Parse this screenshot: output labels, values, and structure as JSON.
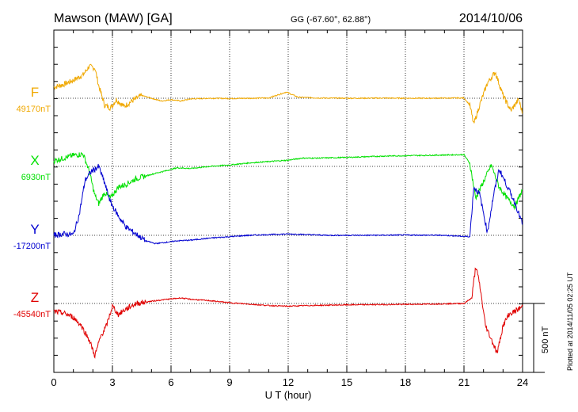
{
  "header": {
    "station": "Mawson (MAW)  [GA]",
    "coords": "GG (-67.60°,  62.88°)",
    "date": "2014/10/06"
  },
  "footer_note": "Plotted at 2014/11/05 02:25 UT",
  "chart_data": {
    "type": "line",
    "xlabel": "U T (hour)",
    "ylabel": "",
    "xlim": [
      0,
      24
    ],
    "xticks": [
      0,
      3,
      6,
      9,
      12,
      15,
      18,
      21,
      24
    ],
    "grid": true,
    "scale_bar": {
      "value_nT": 500,
      "label": "500 nT"
    },
    "colors": {
      "F": "#f0a800",
      "X": "#00e000",
      "Y": "#0000d0",
      "Z": "#e00000"
    },
    "series": [
      {
        "name": "F",
        "baseline_label": "49170nT",
        "baseline_nT": 49170,
        "x": [
          0,
          0.5,
          1.0,
          1.5,
          1.8,
          2.1,
          2.3,
          2.6,
          2.9,
          3.2,
          3.6,
          4.0,
          4.5,
          5.0,
          5.5,
          6.0,
          6.5,
          7.0,
          8.0,
          9.0,
          10.0,
          11.0,
          11.9,
          12.5,
          13.5,
          15.0,
          17.0,
          19.0,
          21.0,
          21.3,
          21.5,
          21.8,
          22.2,
          22.6,
          23.0,
          23.4,
          23.8,
          24.0
        ],
        "values": [
          49250,
          49270,
          49300,
          49340,
          49400,
          49390,
          49260,
          49120,
          49100,
          49160,
          49110,
          49150,
          49190,
          49170,
          49150,
          49160,
          49150,
          49165,
          49170,
          49168,
          49170,
          49172,
          49215,
          49178,
          49172,
          49170,
          49171,
          49170,
          49172,
          49120,
          48980,
          49120,
          49280,
          49360,
          49190,
          49080,
          49160,
          49060
        ]
      },
      {
        "name": "X",
        "baseline_label": "6930nT",
        "baseline_nT": 6930,
        "x": [
          0,
          0.5,
          1.0,
          1.5,
          1.8,
          2.1,
          2.3,
          2.6,
          2.9,
          3.3,
          3.7,
          4.2,
          4.7,
          5.2,
          5.8,
          6.3,
          7.0,
          8.0,
          9.0,
          10.0,
          11.0,
          12.0,
          12.7,
          13.5,
          15.0,
          17.0,
          19.0,
          21.0,
          21.3,
          21.6,
          22.0,
          22.4,
          22.8,
          23.2,
          23.6,
          24.0
        ],
        "values": [
          6970,
          6990,
          7010,
          7020,
          6900,
          6720,
          6660,
          6740,
          6700,
          6780,
          6800,
          6840,
          6860,
          6880,
          6900,
          6920,
          6915,
          6930,
          6940,
          6955,
          6965,
          6975,
          6990,
          6990,
          6995,
          7005,
          7010,
          7015,
          6950,
          6700,
          6820,
          6940,
          6780,
          6700,
          6640,
          6760
        ]
      },
      {
        "name": "Y",
        "baseline_label": "-17200nT",
        "baseline_nT": -17200,
        "x": [
          0,
          0.5,
          1.0,
          1.3,
          1.6,
          1.9,
          2.3,
          2.6,
          2.9,
          3.3,
          3.7,
          4.2,
          4.7,
          5.2,
          5.8,
          6.3,
          7.0,
          8.0,
          9.0,
          10.0,
          11.0,
          12.0,
          13.0,
          14.0,
          16.0,
          18.0,
          20.0,
          21.3,
          21.5,
          21.8,
          22.2,
          22.5,
          22.8,
          23.2,
          23.6,
          24.0
        ],
        "values": [
          -17200,
          -17190,
          -17195,
          -17050,
          -16800,
          -16740,
          -16700,
          -16820,
          -16960,
          -17060,
          -17140,
          -17190,
          -17240,
          -17260,
          -17250,
          -17240,
          -17235,
          -17220,
          -17210,
          -17200,
          -17195,
          -17190,
          -17195,
          -17200,
          -17200,
          -17198,
          -17200,
          -17210,
          -16850,
          -16900,
          -17180,
          -16920,
          -16720,
          -16840,
          -16960,
          -17120
        ]
      },
      {
        "name": "Z",
        "baseline_label": "-45540nT",
        "baseline_nT": -45540,
        "x": [
          0,
          0.5,
          1.0,
          1.4,
          1.8,
          2.1,
          2.4,
          2.7,
          3.0,
          3.3,
          3.7,
          4.2,
          4.7,
          5.2,
          5.8,
          6.5,
          7.0,
          8.0,
          9.0,
          10.0,
          11.0,
          12.0,
          13.0,
          15.0,
          17.0,
          19.0,
          21.0,
          21.4,
          21.6,
          21.8,
          22.1,
          22.4,
          22.7,
          23.0,
          23.3,
          23.7,
          24.0
        ],
        "values": [
          -45600,
          -45610,
          -45640,
          -45700,
          -45800,
          -45920,
          -45780,
          -45700,
          -45560,
          -45620,
          -45580,
          -45540,
          -45530,
          -45520,
          -45510,
          -45500,
          -45510,
          -45520,
          -45535,
          -45545,
          -45555,
          -45560,
          -45555,
          -45550,
          -45548,
          -45545,
          -45540,
          -45500,
          -45270,
          -45400,
          -45700,
          -45800,
          -45900,
          -45700,
          -45620,
          -45590,
          -45560
        ]
      }
    ]
  }
}
